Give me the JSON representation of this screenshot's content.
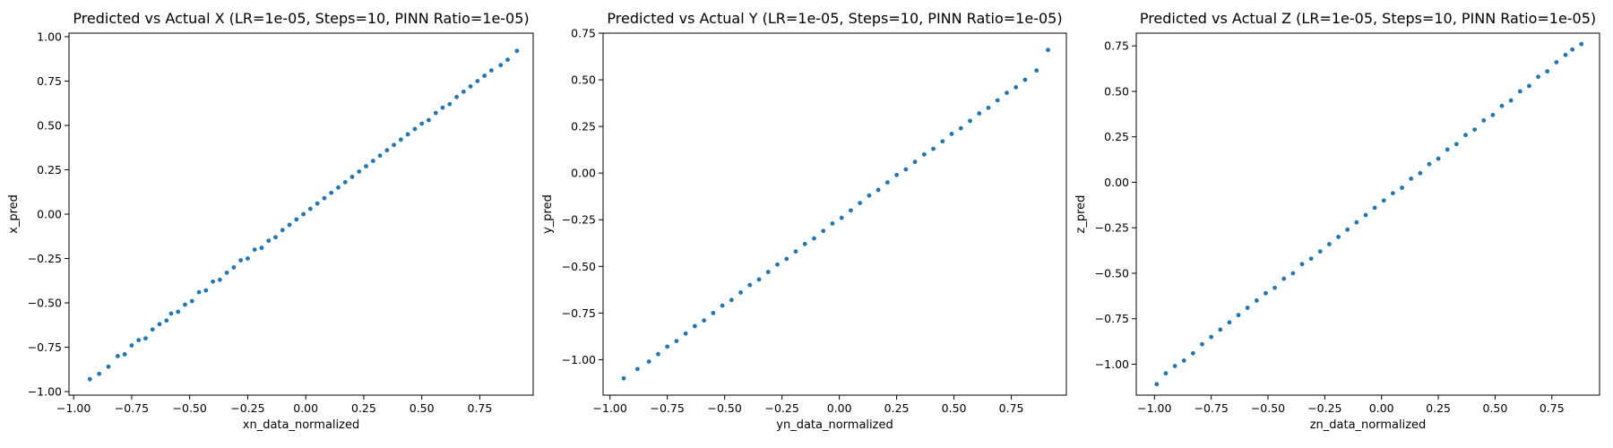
{
  "chart_data": [
    {
      "type": "scatter",
      "title": "Predicted vs Actual X (LR=1e-05, Steps=10, PINN Ratio=1e-05)",
      "xlabel": "xn_data_normalized",
      "ylabel": "x_pred",
      "xlim": [
        -1.02,
        0.98
      ],
      "ylim": [
        -1.02,
        1.02
      ],
      "xticks": [
        -1.0,
        -0.75,
        -0.5,
        -0.25,
        0.0,
        0.25,
        0.5,
        0.75
      ],
      "xtick_labels": [
        "−1.00",
        "−0.75",
        "−0.50",
        "−0.25",
        "0.00",
        "0.25",
        "0.50",
        "0.75"
      ],
      "yticks": [
        -1.0,
        -0.75,
        -0.5,
        -0.25,
        0.0,
        0.25,
        0.5,
        0.75,
        1.0
      ],
      "ytick_labels": [
        "−1.00",
        "−0.75",
        "−0.50",
        "−0.25",
        "0.00",
        "0.25",
        "0.50",
        "0.75",
        "1.00"
      ],
      "color": "#1f77b4",
      "grid": false,
      "series": [
        {
          "x": [
            -0.93,
            -0.89,
            -0.85,
            -0.81,
            -0.78,
            -0.75,
            -0.72,
            -0.69,
            -0.66,
            -0.63,
            -0.6,
            -0.58,
            -0.55,
            -0.52,
            -0.49,
            -0.46,
            -0.43,
            -0.4,
            -0.37,
            -0.34,
            -0.31,
            -0.28,
            -0.25,
            -0.22,
            -0.19,
            -0.16,
            -0.13,
            -0.1,
            -0.07,
            -0.04,
            -0.01,
            0.02,
            0.05,
            0.08,
            0.11,
            0.14,
            0.17,
            0.2,
            0.23,
            0.26,
            0.29,
            0.32,
            0.35,
            0.38,
            0.41,
            0.44,
            0.47,
            0.5,
            0.53,
            0.56,
            0.59,
            0.62,
            0.65,
            0.68,
            0.71,
            0.74,
            0.77,
            0.8,
            0.84,
            0.87,
            0.91
          ],
          "y": [
            -0.93,
            -0.9,
            -0.86,
            -0.8,
            -0.79,
            -0.74,
            -0.71,
            -0.7,
            -0.65,
            -0.62,
            -0.6,
            -0.56,
            -0.55,
            -0.51,
            -0.49,
            -0.44,
            -0.43,
            -0.38,
            -0.37,
            -0.33,
            -0.3,
            -0.26,
            -0.25,
            -0.2,
            -0.19,
            -0.15,
            -0.13,
            -0.09,
            -0.06,
            -0.03,
            0.0,
            0.03,
            0.06,
            0.09,
            0.12,
            0.15,
            0.18,
            0.21,
            0.24,
            0.27,
            0.3,
            0.33,
            0.36,
            0.39,
            0.42,
            0.45,
            0.48,
            0.51,
            0.53,
            0.57,
            0.6,
            0.62,
            0.66,
            0.69,
            0.72,
            0.75,
            0.78,
            0.81,
            0.84,
            0.87,
            0.92
          ]
        }
      ]
    },
    {
      "type": "scatter",
      "title": "Predicted vs Actual Y (LR=1e-05, Steps=10, PINN Ratio=1e-05)",
      "xlabel": "yn_data_normalized",
      "ylabel": "y_pred",
      "xlim": [
        -1.03,
        0.99
      ],
      "ylim": [
        -1.19,
        0.75
      ],
      "xticks": [
        -1.0,
        -0.75,
        -0.5,
        -0.25,
        0.0,
        0.25,
        0.5,
        0.75
      ],
      "xtick_labels": [
        "−1.00",
        "−0.75",
        "−0.50",
        "−0.25",
        "0.00",
        "0.25",
        "0.50",
        "0.75"
      ],
      "yticks": [
        -1.0,
        -0.75,
        -0.5,
        -0.25,
        0.0,
        0.25,
        0.5,
        0.75
      ],
      "ytick_labels": [
        "−1.00",
        "−0.75",
        "−0.50",
        "−0.25",
        "0.00",
        "0.25",
        "0.50",
        "0.75"
      ],
      "color": "#1f77b4",
      "grid": false,
      "series": [
        {
          "x": [
            -0.94,
            -0.88,
            -0.83,
            -0.79,
            -0.75,
            -0.71,
            -0.67,
            -0.63,
            -0.59,
            -0.55,
            -0.51,
            -0.47,
            -0.43,
            -0.39,
            -0.35,
            -0.31,
            -0.27,
            -0.23,
            -0.19,
            -0.15,
            -0.11,
            -0.07,
            -0.03,
            0.01,
            0.05,
            0.09,
            0.13,
            0.17,
            0.21,
            0.25,
            0.29,
            0.33,
            0.37,
            0.41,
            0.45,
            0.49,
            0.53,
            0.57,
            0.61,
            0.65,
            0.69,
            0.73,
            0.77,
            0.81,
            0.86,
            0.91
          ],
          "y": [
            -1.1,
            -1.05,
            -1.01,
            -0.97,
            -0.93,
            -0.9,
            -0.86,
            -0.82,
            -0.79,
            -0.75,
            -0.71,
            -0.68,
            -0.64,
            -0.6,
            -0.57,
            -0.53,
            -0.49,
            -0.46,
            -0.42,
            -0.38,
            -0.35,
            -0.31,
            -0.27,
            -0.24,
            -0.2,
            -0.16,
            -0.12,
            -0.09,
            -0.05,
            -0.01,
            0.02,
            0.06,
            0.1,
            0.13,
            0.17,
            0.21,
            0.24,
            0.28,
            0.32,
            0.35,
            0.39,
            0.43,
            0.46,
            0.5,
            0.55,
            0.66
          ]
        }
      ]
    },
    {
      "type": "scatter",
      "title": "Predicted vs Actual Z (LR=1e-05, Steps=10, PINN Ratio=1e-05)",
      "xlabel": "zn_data_normalized",
      "ylabel": "z_pred",
      "xlim": [
        -1.08,
        0.96
      ],
      "ylim": [
        -1.17,
        0.82
      ],
      "xticks": [
        -1.0,
        -0.75,
        -0.5,
        -0.25,
        0.0,
        0.25,
        0.5,
        0.75
      ],
      "xtick_labels": [
        "−1.00",
        "−0.75",
        "−0.50",
        "−0.25",
        "0.00",
        "0.25",
        "0.50",
        "0.75"
      ],
      "yticks": [
        -1.0,
        -0.75,
        -0.5,
        -0.25,
        0.0,
        0.25,
        0.5,
        0.75
      ],
      "ytick_labels": [
        "−1.00",
        "−0.75",
        "−0.50",
        "−0.25",
        "0.00",
        "0.25",
        "0.50",
        "0.75"
      ],
      "color": "#1f77b4",
      "grid": false,
      "series": [
        {
          "x": [
            -0.99,
            -0.95,
            -0.91,
            -0.87,
            -0.83,
            -0.79,
            -0.75,
            -0.71,
            -0.67,
            -0.63,
            -0.59,
            -0.55,
            -0.51,
            -0.47,
            -0.43,
            -0.39,
            -0.35,
            -0.31,
            -0.27,
            -0.23,
            -0.19,
            -0.15,
            -0.11,
            -0.07,
            -0.03,
            0.01,
            0.05,
            0.09,
            0.13,
            0.17,
            0.21,
            0.25,
            0.29,
            0.33,
            0.37,
            0.41,
            0.45,
            0.49,
            0.53,
            0.57,
            0.61,
            0.65,
            0.69,
            0.73,
            0.77,
            0.81,
            0.84,
            0.88
          ],
          "y": [
            -1.11,
            -1.05,
            -1.01,
            -0.98,
            -0.94,
            -0.89,
            -0.85,
            -0.81,
            -0.77,
            -0.73,
            -0.69,
            -0.65,
            -0.61,
            -0.58,
            -0.53,
            -0.5,
            -0.45,
            -0.42,
            -0.38,
            -0.34,
            -0.3,
            -0.26,
            -0.22,
            -0.18,
            -0.14,
            -0.1,
            -0.06,
            -0.03,
            0.02,
            0.05,
            0.1,
            0.13,
            0.18,
            0.21,
            0.26,
            0.29,
            0.34,
            0.37,
            0.42,
            0.45,
            0.5,
            0.53,
            0.58,
            0.61,
            0.66,
            0.7,
            0.73,
            0.76
          ]
        }
      ]
    }
  ]
}
